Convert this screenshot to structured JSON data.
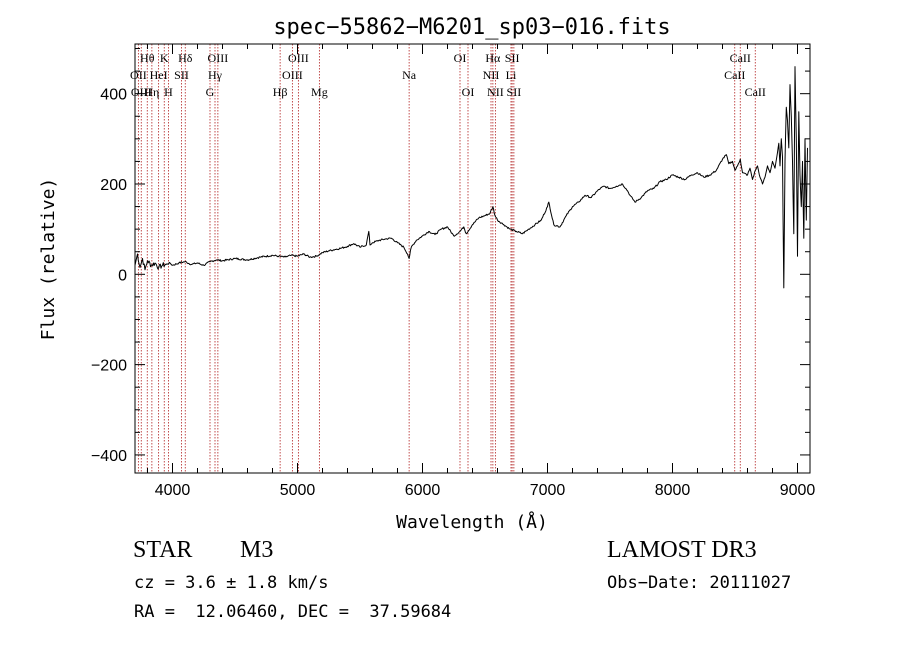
{
  "chart_data": {
    "type": "line",
    "title": "spec−55862−M6201_sp03−016.fits",
    "xlabel": "Wavelength (Å)",
    "ylabel": "Flux (relative)",
    "xlim": [
      3700,
      9100
    ],
    "ylim": [
      -440,
      510
    ],
    "x_ticks": [
      4000,
      5000,
      6000,
      7000,
      8000,
      9000
    ],
    "x_tick_labels": [
      "4000",
      "5000",
      "6000",
      "7000",
      "8000",
      "9000"
    ],
    "y_ticks": [
      -400,
      -200,
      0,
      200,
      400
    ],
    "y_tick_labels": [
      "−400",
      "−200",
      "0",
      "200",
      "400"
    ],
    "series": [
      {
        "name": "flux",
        "color": "#000000",
        "x": [
          3700,
          3720,
          3740,
          3760,
          3780,
          3800,
          3830,
          3860,
          3890,
          3920,
          3950,
          3980,
          4000,
          4050,
          4100,
          4150,
          4200,
          4250,
          4300,
          4350,
          4400,
          4500,
          4600,
          4700,
          4800,
          4850,
          4900,
          4950,
          5000,
          5050,
          5100,
          5150,
          5200,
          5250,
          5300,
          5350,
          5400,
          5450,
          5500,
          5550,
          5570,
          5580,
          5600,
          5650,
          5700,
          5750,
          5800,
          5850,
          5880,
          5893,
          5910,
          5950,
          6000,
          6050,
          6100,
          6150,
          6200,
          6250,
          6300,
          6330,
          6350,
          6400,
          6450,
          6500,
          6540,
          6563,
          6580,
          6600,
          6650,
          6700,
          6750,
          6800,
          6850,
          6900,
          6950,
          7000,
          7010,
          7050,
          7100,
          7150,
          7200,
          7250,
          7300,
          7350,
          7400,
          7450,
          7500,
          7550,
          7600,
          7640,
          7660,
          7700,
          7750,
          7800,
          7850,
          7900,
          7950,
          8000,
          8050,
          8100,
          8150,
          8200,
          8250,
          8300,
          8350,
          8400,
          8430,
          8450,
          8480,
          8500,
          8520,
          8542,
          8560,
          8600,
          8620,
          8640,
          8662,
          8680,
          8700,
          8720,
          8740,
          8760,
          8780,
          8800,
          8820,
          8840,
          8850,
          8860,
          8870,
          8880,
          8890,
          8900,
          8910,
          8920,
          8930,
          8940,
          8950,
          8960,
          8970,
          8980,
          8990,
          9000,
          9010,
          9020,
          9030,
          9040,
          9050,
          9060,
          9070,
          9080
        ],
        "values": [
          20,
          45,
          15,
          35,
          10,
          30,
          20,
          25,
          15,
          20,
          22,
          25,
          20,
          25,
          28,
          22,
          25,
          20,
          28,
          32,
          30,
          35,
          32,
          38,
          42,
          40,
          38,
          42,
          40,
          45,
          38,
          40,
          48,
          52,
          55,
          58,
          62,
          68,
          60,
          65,
          95,
          65,
          70,
          75,
          78,
          80,
          70,
          60,
          45,
          35,
          60,
          75,
          85,
          95,
          88,
          100,
          105,
          85,
          95,
          105,
          90,
          110,
          125,
          130,
          135,
          150,
          130,
          120,
          110,
          100,
          95,
          90,
          100,
          110,
          120,
          150,
          160,
          110,
          105,
          130,
          150,
          160,
          175,
          170,
          185,
          195,
          190,
          195,
          200,
          185,
          175,
          160,
          170,
          185,
          190,
          205,
          210,
          220,
          215,
          210,
          220,
          225,
          215,
          220,
          230,
          255,
          265,
          245,
          250,
          230,
          240,
          255,
          225,
          220,
          235,
          210,
          230,
          240,
          215,
          200,
          215,
          240,
          225,
          250,
          235,
          270,
          290,
          240,
          300,
          260,
          -30,
          250,
          370,
          340,
          280,
          420,
          350,
          250,
          90,
          460,
          300,
          40,
          360,
          220,
          150,
          250,
          80,
          300,
          120,
          280
        ]
      }
    ],
    "lines_top": [
      {
        "label": "Hθ",
        "wl": 3798
      },
      {
        "label": "K",
        "wl": 3934
      },
      {
        "label": "Hδ",
        "wl": 4102
      },
      {
        "label": "OIII",
        "wl": 4363
      },
      {
        "label": "OIII",
        "wl": 5007
      },
      {
        "label": "OI",
        "wl": 6300
      },
      {
        "label": "Hα",
        "wl": 6563
      },
      {
        "label": "SII",
        "wl": 6717
      },
      {
        "label": "CaII",
        "wl": 8542
      }
    ],
    "lines_mid": [
      {
        "label": "OII",
        "wl": 3727
      },
      {
        "label": "HeI",
        "wl": 3889
      },
      {
        "label": "SII",
        "wl": 4072
      },
      {
        "label": "Hγ",
        "wl": 4340
      },
      {
        "label": "OIII",
        "wl": 4959
      },
      {
        "label": "Na",
        "wl": 5893
      },
      {
        "label": "NII",
        "wl": 6548
      },
      {
        "label": "Li",
        "wl": 6708
      },
      {
        "label": "CaII",
        "wl": 8498
      }
    ],
    "lines_bot": [
      {
        "label": "OIII",
        "wl": 3750
      },
      {
        "label": "Hη",
        "wl": 3835
      },
      {
        "label": "H",
        "wl": 3968
      },
      {
        "label": "G",
        "wl": 4300
      },
      {
        "label": "Hβ",
        "wl": 4861
      },
      {
        "label": "Mg",
        "wl": 5175
      },
      {
        "label": "OI",
        "wl": 6364
      },
      {
        "label": "NII",
        "wl": 6583
      },
      {
        "label": "SII",
        "wl": 6731
      },
      {
        "label": "CaII",
        "wl": 8662
      }
    ]
  },
  "info": {
    "object_class": "STAR",
    "subclass": "M3",
    "survey": "LAMOST DR3",
    "cz": "cz = 3.6 ± 1.8 km/s",
    "obs_date": "Obs−Date: 20111027",
    "coords": "RA =  12.06460, DEC =  37.59684"
  },
  "colors": {
    "axis": "#000000",
    "spectrum": "#000000",
    "line_marker": "#b22222"
  }
}
